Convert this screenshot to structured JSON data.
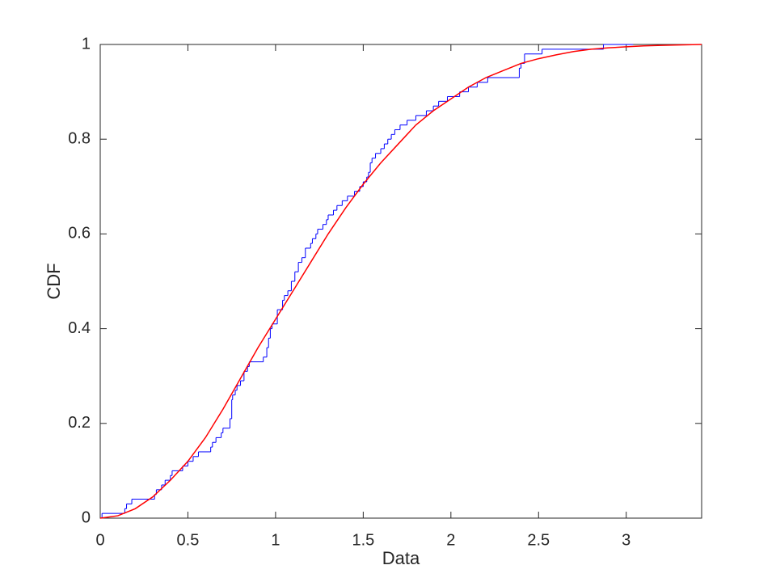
{
  "chart_data": {
    "type": "line",
    "xlabel": "Data",
    "ylabel": "CDF",
    "xlim": [
      0,
      3.43
    ],
    "ylim": [
      0,
      1
    ],
    "xticks": [
      0,
      0.5,
      1,
      1.5,
      2,
      2.5,
      3
    ],
    "yticks": [
      0,
      0.2,
      0.4,
      0.6,
      0.8,
      1
    ],
    "grid": false,
    "series": [
      {
        "type": "step",
        "color": "#0000ff",
        "x": [
          0.01,
          0.14,
          0.15,
          0.18,
          0.31,
          0.32,
          0.35,
          0.37,
          0.4,
          0.41,
          0.47,
          0.5,
          0.53,
          0.56,
          0.63,
          0.64,
          0.66,
          0.69,
          0.7,
          0.74,
          0.75,
          0.755,
          0.77,
          0.78,
          0.8,
          0.82,
          0.84,
          0.85,
          0.93,
          0.95,
          0.96,
          0.97,
          0.98,
          1.01,
          1.04,
          1.05,
          1.07,
          1.09,
          1.11,
          1.13,
          1.15,
          1.17,
          1.2,
          1.21,
          1.23,
          1.24,
          1.27,
          1.29,
          1.3,
          1.33,
          1.35,
          1.38,
          1.41,
          1.45,
          1.48,
          1.5,
          1.52,
          1.53,
          1.54,
          1.55,
          1.57,
          1.6,
          1.62,
          1.64,
          1.66,
          1.68,
          1.71,
          1.75,
          1.8,
          1.86,
          1.9,
          1.93,
          1.98,
          2.05,
          2.1,
          2.15,
          2.21,
          2.39,
          2.4,
          2.42,
          2.52,
          2.87,
          3.04
        ],
        "values": [
          0.01,
          0.02,
          0.03,
          0.04,
          0.05,
          0.06,
          0.07,
          0.08,
          0.09,
          0.1,
          0.11,
          0.12,
          0.13,
          0.14,
          0.15,
          0.16,
          0.17,
          0.18,
          0.19,
          0.21,
          0.25,
          0.26,
          0.27,
          0.28,
          0.29,
          0.31,
          0.32,
          0.33,
          0.34,
          0.36,
          0.38,
          0.4,
          0.41,
          0.44,
          0.46,
          0.47,
          0.48,
          0.5,
          0.52,
          0.54,
          0.55,
          0.57,
          0.58,
          0.59,
          0.6,
          0.61,
          0.62,
          0.63,
          0.64,
          0.65,
          0.66,
          0.67,
          0.68,
          0.69,
          0.7,
          0.71,
          0.72,
          0.73,
          0.75,
          0.76,
          0.77,
          0.78,
          0.79,
          0.8,
          0.81,
          0.82,
          0.83,
          0.84,
          0.85,
          0.86,
          0.87,
          0.88,
          0.89,
          0.9,
          0.91,
          0.92,
          0.93,
          0.95,
          0.96,
          0.98,
          0.99,
          1.0,
          1.0
        ]
      },
      {
        "type": "line",
        "color": "#ff0000",
        "x": [
          0,
          0.1,
          0.2,
          0.3,
          0.4,
          0.5,
          0.6,
          0.7,
          0.8,
          0.9,
          1.0,
          1.1,
          1.2,
          1.3,
          1.4,
          1.5,
          1.6,
          1.7,
          1.8,
          1.9,
          2.0,
          2.1,
          2.2,
          2.3,
          2.4,
          2.5,
          2.6,
          2.7,
          2.8,
          2.9,
          3.0,
          3.1,
          3.2,
          3.3,
          3.43
        ],
        "values": [
          0,
          0.005,
          0.02,
          0.045,
          0.08,
          0.12,
          0.17,
          0.23,
          0.295,
          0.36,
          0.42,
          0.48,
          0.54,
          0.6,
          0.655,
          0.705,
          0.75,
          0.79,
          0.83,
          0.86,
          0.885,
          0.91,
          0.93,
          0.945,
          0.96,
          0.97,
          0.978,
          0.985,
          0.99,
          0.993,
          0.995,
          0.997,
          0.998,
          0.999,
          1.0
        ]
      }
    ]
  }
}
